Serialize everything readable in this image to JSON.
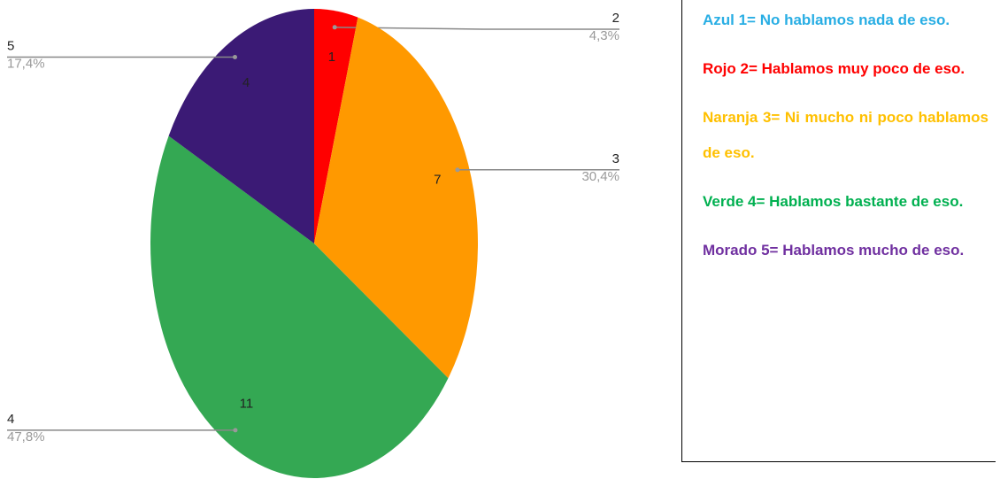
{
  "chart_data": {
    "type": "pie",
    "categories": [
      "2",
      "3",
      "4",
      "5"
    ],
    "values": [
      4.3,
      30.4,
      47.8,
      17.4
    ],
    "value_labels": [
      "4,3%",
      "30,4%",
      "47,8%",
      "17,4%"
    ],
    "counts": [
      1,
      7,
      11,
      4
    ],
    "colors": [
      "#ff0000",
      "#ff9900",
      "#34a853",
      "#3b1a75"
    ]
  },
  "legend_box": {
    "items": [
      {
        "text": "Azul 1= No hablamos nada de eso.",
        "color": "#29aee4"
      },
      {
        "text": "Rojo 2= Hablamos muy poco de eso.",
        "color": "#ff0000"
      },
      {
        "text": "Naranja 3= Ni mucho ni poco hablamos de eso.",
        "color": "#ffc000"
      },
      {
        "text": "Verde 4= Hablamos bastante de eso.",
        "color": "#00b050"
      },
      {
        "text": "Morado 5= Hablamos mucho de eso.",
        "color": "#7030a0"
      }
    ]
  }
}
